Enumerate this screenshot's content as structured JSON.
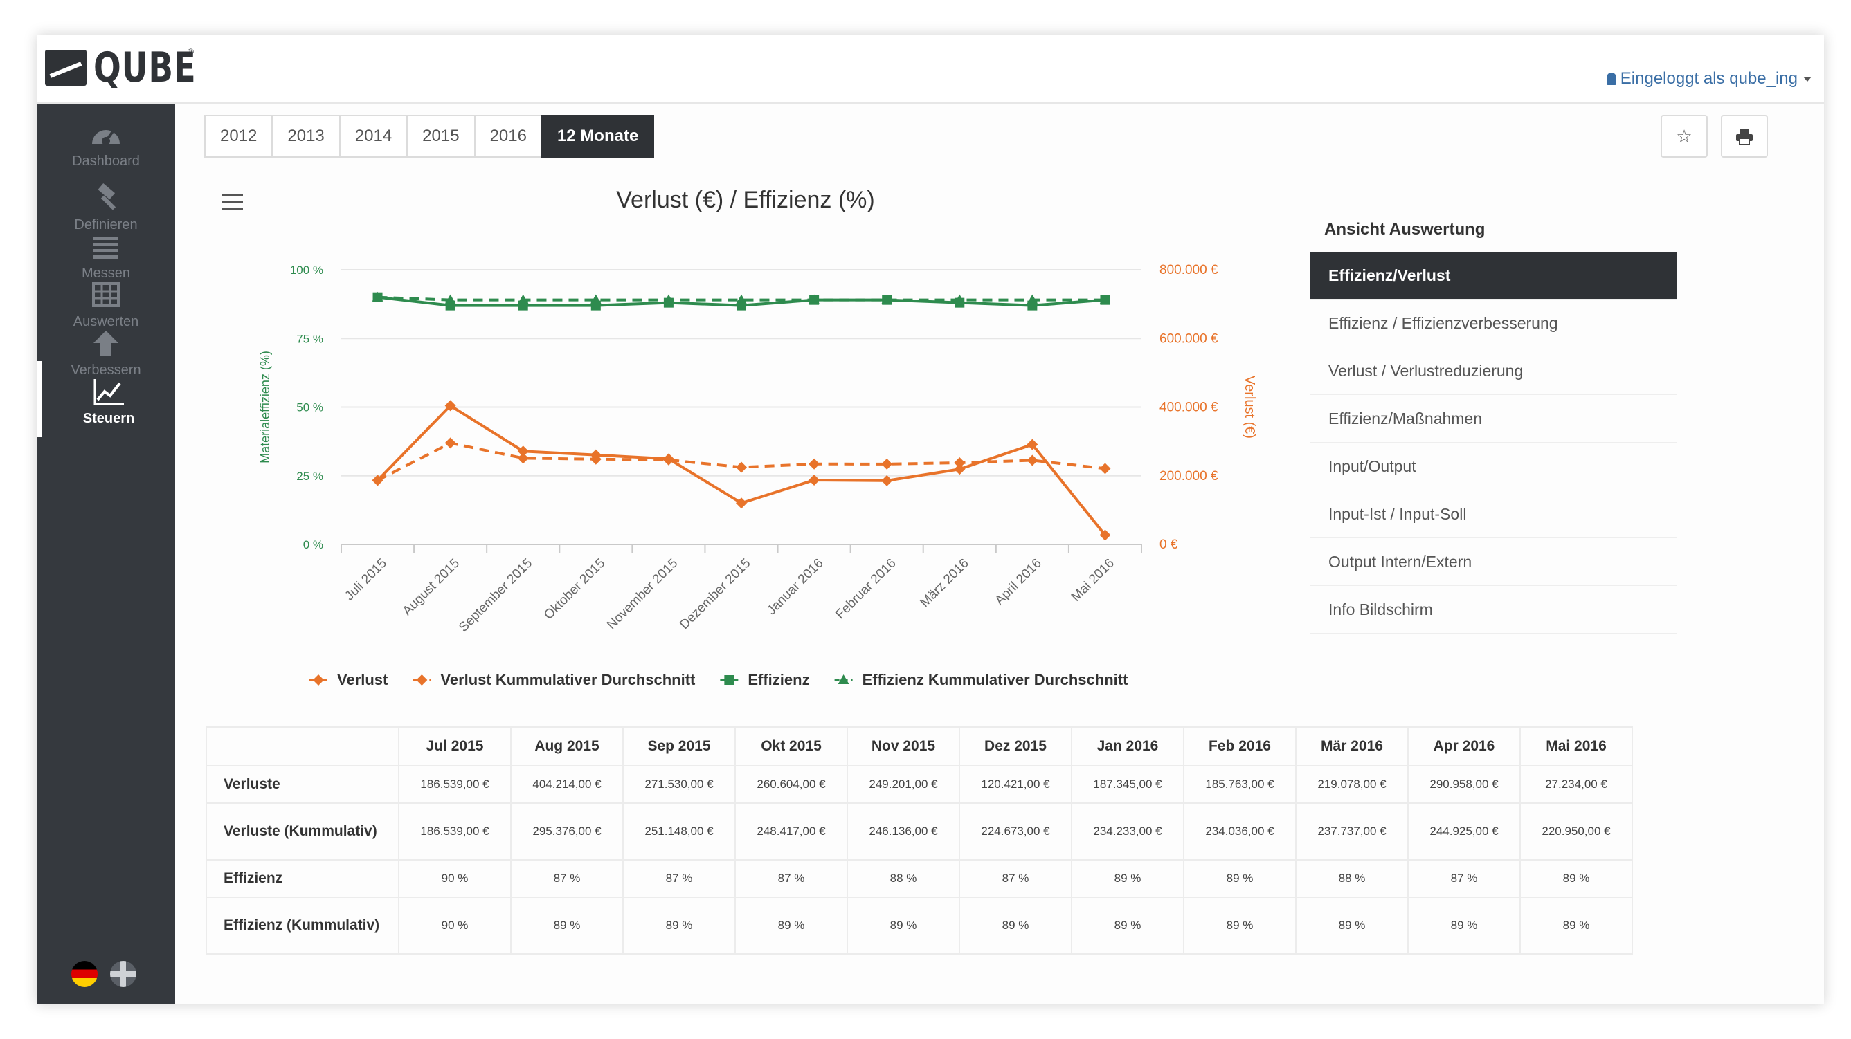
{
  "header": {
    "logo_text": "QUBE",
    "logo_reg": "®",
    "user_label": "Eingeloggt als qube_ing"
  },
  "sidebar": {
    "items": [
      {
        "label": "Dashboard",
        "icon": "dashboard-gauge-icon"
      },
      {
        "label": "Definieren",
        "icon": "hammer-icon"
      },
      {
        "label": "Messen",
        "icon": "list-icon"
      },
      {
        "label": "Auswerten",
        "icon": "table-icon"
      },
      {
        "label": "Verbessern",
        "icon": "arrow-up-icon"
      },
      {
        "label": "Steuern",
        "icon": "line-chart-icon",
        "active": true
      }
    ],
    "languages": [
      "Deutsch",
      "English"
    ]
  },
  "year_tabs": [
    "2012",
    "2013",
    "2014",
    "2015",
    "2016",
    "12 Monate"
  ],
  "year_tab_active": "12 Monate",
  "toolbar": {
    "favorite_icon": "star-icon",
    "print_icon": "print-icon"
  },
  "colors": {
    "loss": "#e8732a",
    "efficiency": "#2e8b4e",
    "dark": "#2f3236"
  },
  "chart_data": {
    "type": "line",
    "title": "Verlust (€) / Effizienz (%)",
    "categories": [
      "Juli 2015",
      "August 2015",
      "September 2015",
      "Oktober 2015",
      "November 2015",
      "Dezember 2015",
      "Januar 2016",
      "Februar 2016",
      "März 2016",
      "April 2016",
      "Mai 2016"
    ],
    "y_left": {
      "label": "Materialeffizienz (%)",
      "range": [
        0,
        100
      ],
      "ticks": [
        "0 %",
        "25 %",
        "50 %",
        "75 %",
        "100 %"
      ],
      "tick_values": [
        0,
        25,
        50,
        75,
        100
      ]
    },
    "y_right": {
      "label": "Verlust (€)",
      "range": [
        0,
        800000
      ],
      "ticks": [
        "0 €",
        "200.000 €",
        "400.000 €",
        "600.000 €",
        "800.000 €"
      ],
      "tick_values": [
        0,
        200000,
        400000,
        600000,
        800000
      ]
    },
    "series": [
      {
        "name": "Verlust",
        "axis": "right",
        "style": "solid",
        "marker": "diamond",
        "color": "#e8732a",
        "values": [
          186539,
          404214,
          271530,
          260604,
          249201,
          120421,
          187345,
          185763,
          219078,
          290958,
          27234
        ]
      },
      {
        "name": "Verlust Kummulativer Durchschnitt",
        "axis": "right",
        "style": "dashed",
        "marker": "diamond",
        "color": "#e8732a",
        "values": [
          186539,
          295376,
          251148,
          248417,
          246136,
          224673,
          234233,
          234036,
          237737,
          244925,
          220950
        ]
      },
      {
        "name": "Effizienz",
        "axis": "left",
        "style": "solid",
        "marker": "square",
        "color": "#2e8b4e",
        "values": [
          90,
          87,
          87,
          87,
          88,
          87,
          89,
          89,
          88,
          87,
          89
        ]
      },
      {
        "name": "Effizienz Kummulativer Durchschnitt",
        "axis": "left",
        "style": "dashed",
        "marker": "triangle",
        "color": "#2e8b4e",
        "values": [
          90,
          89,
          89,
          89,
          89,
          89,
          89,
          89,
          89,
          89,
          89
        ]
      }
    ],
    "legend_position": "bottom",
    "grid": true
  },
  "right_panel": {
    "title": "Ansicht Auswertung",
    "items": [
      "Effizienz/Verlust",
      "Effizienz / Effizienzverbesserung",
      "Verlust / Verlustreduzierung",
      "Effizienz/Maßnahmen",
      "Input/Output",
      "Input-Ist / Input-Soll",
      "Output Intern/Extern",
      "Info Bildschirm"
    ],
    "active_index": 0
  },
  "table": {
    "columns": [
      "Jul 2015",
      "Aug 2015",
      "Sep 2015",
      "Okt 2015",
      "Nov 2015",
      "Dez 2015",
      "Jan 2016",
      "Feb 2016",
      "Mär 2016",
      "Apr 2016",
      "Mai 2016"
    ],
    "rows": [
      {
        "label": "Verluste",
        "values": [
          "186.539,00 €",
          "404.214,00 €",
          "271.530,00 €",
          "260.604,00 €",
          "249.201,00 €",
          "120.421,00 €",
          "187.345,00 €",
          "185.763,00 €",
          "219.078,00 €",
          "290.958,00 €",
          "27.234,00 €"
        ]
      },
      {
        "label": "Verluste (Kummulativ)",
        "values": [
          "186.539,00 €",
          "295.376,00 €",
          "251.148,00 €",
          "248.417,00 €",
          "246.136,00 €",
          "224.673,00 €",
          "234.233,00 €",
          "234.036,00 €",
          "237.737,00 €",
          "244.925,00 €",
          "220.950,00 €"
        ]
      },
      {
        "label": "Effizienz",
        "values": [
          "90 %",
          "87 %",
          "87 %",
          "87 %",
          "88 %",
          "87 %",
          "89 %",
          "89 %",
          "88 %",
          "87 %",
          "89 %"
        ]
      },
      {
        "label": "Effizienz (Kummulativ)",
        "values": [
          "90 %",
          "89 %",
          "89 %",
          "89 %",
          "89 %",
          "89 %",
          "89 %",
          "89 %",
          "89 %",
          "89 %",
          "89 %"
        ]
      }
    ]
  }
}
